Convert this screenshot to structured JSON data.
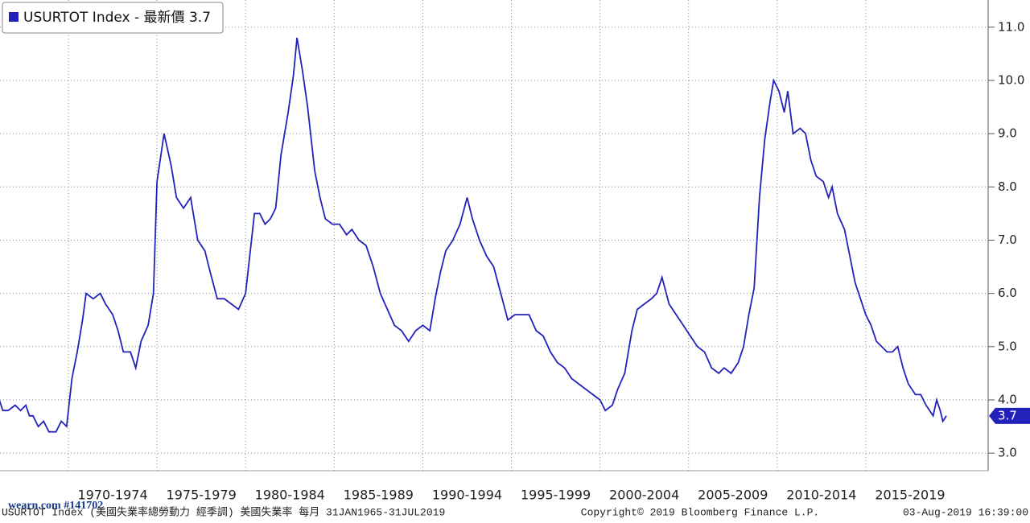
{
  "chart_data": {
    "type": "line",
    "legend_text": "USURTOT Index - 最新價 3.7",
    "last_value_label": "3.7",
    "watermark": "wearn.com #141702",
    "footer_left": "USURTOT Index (美國失業率總勞動力 經季調) 美國失業率  每月 31JAN1965-31JUL2019",
    "footer_center": "Copyright© 2019 Bloomberg Finance L.P.",
    "footer_right": "03-Aug-2019 16:39:00",
    "xlim": [
      1966.14,
      2021.77
    ],
    "xticks": [
      {
        "value": 1970,
        "label": "1970-1974"
      },
      {
        "value": 1975,
        "label": "1975-1979"
      },
      {
        "value": 1980,
        "label": "1980-1984"
      },
      {
        "value": 1985,
        "label": "1985-1989"
      },
      {
        "value": 1990,
        "label": "1990-1994"
      },
      {
        "value": 1995,
        "label": "1995-1999"
      },
      {
        "value": 2000,
        "label": "2000-2004"
      },
      {
        "value": 2005,
        "label": "2005-2009"
      },
      {
        "value": 2010,
        "label": "2010-2014"
      },
      {
        "value": 2015,
        "label": "2015-2019"
      }
    ],
    "ylim": [
      2.67,
      11.51
    ],
    "yticks": [
      {
        "value": 3,
        "label": "3.0"
      },
      {
        "value": 4,
        "label": "4.0"
      },
      {
        "value": 5,
        "label": "5.0"
      },
      {
        "value": 6,
        "label": "6.0"
      },
      {
        "value": 7,
        "label": "7.0"
      },
      {
        "value": 8,
        "label": "8.0"
      },
      {
        "value": 9,
        "label": "9.0"
      },
      {
        "value": 10,
        "label": "10.0"
      },
      {
        "value": 11,
        "label": "11.0"
      }
    ],
    "grid": true,
    "series": [
      {
        "name": "USURTOT Index",
        "color": "#2222b8",
        "x": [
          1966.1,
          1966.3,
          1966.6,
          1967.0,
          1967.3,
          1967.6,
          1967.8,
          1968.0,
          1968.3,
          1968.6,
          1968.9,
          1969.3,
          1969.6,
          1969.9,
          1970.2,
          1970.5,
          1970.8,
          1971.0,
          1971.4,
          1971.8,
          1972.1,
          1972.5,
          1972.8,
          1973.1,
          1973.5,
          1973.8,
          1974.1,
          1974.5,
          1974.8,
          1975.0,
          1975.4,
          1975.8,
          1976.1,
          1976.5,
          1976.9,
          1977.3,
          1977.7,
          1978.0,
          1978.4,
          1978.8,
          1979.2,
          1979.6,
          1980.0,
          1980.3,
          1980.5,
          1980.8,
          1981.1,
          1981.4,
          1981.7,
          1982.0,
          1982.4,
          1982.7,
          1982.9,
          1983.2,
          1983.5,
          1983.9,
          1984.2,
          1984.5,
          1984.9,
          1985.3,
          1985.7,
          1986.0,
          1986.4,
          1986.8,
          1987.2,
          1987.6,
          1988.0,
          1988.4,
          1988.8,
          1989.2,
          1989.6,
          1990.0,
          1990.4,
          1990.7,
          1991.0,
          1991.3,
          1991.7,
          1992.1,
          1992.5,
          1992.8,
          1993.2,
          1993.6,
          1994.0,
          1994.4,
          1994.8,
          1995.2,
          1995.6,
          1996.0,
          1996.4,
          1996.8,
          1997.2,
          1997.6,
          1998.0,
          1998.4,
          1998.8,
          1999.2,
          1999.6,
          2000.0,
          2000.3,
          2000.7,
          2001.0,
          2001.4,
          2001.8,
          2002.1,
          2002.5,
          2002.9,
          2003.2,
          2003.5,
          2003.9,
          2004.3,
          2004.7,
          2005.1,
          2005.5,
          2005.9,
          2006.3,
          2006.7,
          2007.0,
          2007.4,
          2007.8,
          2008.1,
          2008.4,
          2008.7,
          2009.0,
          2009.3,
          2009.6,
          2009.8,
          2010.1,
          2010.4,
          2010.6,
          2010.9,
          2011.3,
          2011.6,
          2011.9,
          2012.2,
          2012.6,
          2012.9,
          2013.1,
          2013.4,
          2013.8,
          2014.1,
          2014.4,
          2014.7,
          2015.0,
          2015.3,
          2015.6,
          2015.9,
          2016.2,
          2016.5,
          2016.8,
          2017.1,
          2017.4,
          2017.8,
          2018.1,
          2018.4,
          2018.8,
          2019.0,
          2019.2,
          2019.35,
          2019.55
        ],
        "values": [
          4.0,
          3.8,
          3.8,
          3.9,
          3.8,
          3.9,
          3.7,
          3.7,
          3.5,
          3.6,
          3.4,
          3.4,
          3.6,
          3.5,
          4.4,
          4.9,
          5.5,
          6.0,
          5.9,
          6.0,
          5.8,
          5.6,
          5.3,
          4.9,
          4.9,
          4.6,
          5.1,
          5.4,
          6.0,
          8.1,
          9.0,
          8.4,
          7.8,
          7.6,
          7.8,
          7.0,
          6.8,
          6.4,
          5.9,
          5.9,
          5.8,
          5.7,
          6.0,
          6.9,
          7.5,
          7.5,
          7.3,
          7.4,
          7.6,
          8.6,
          9.4,
          10.1,
          10.8,
          10.2,
          9.5,
          8.3,
          7.8,
          7.4,
          7.3,
          7.3,
          7.1,
          7.2,
          7.0,
          6.9,
          6.5,
          6.0,
          5.7,
          5.4,
          5.3,
          5.1,
          5.3,
          5.4,
          5.3,
          5.9,
          6.4,
          6.8,
          7.0,
          7.3,
          7.8,
          7.4,
          7.0,
          6.7,
          6.5,
          6.0,
          5.5,
          5.6,
          5.6,
          5.6,
          5.3,
          5.2,
          4.9,
          4.7,
          4.6,
          4.4,
          4.3,
          4.2,
          4.1,
          4.0,
          3.8,
          3.9,
          4.2,
          4.5,
          5.3,
          5.7,
          5.8,
          5.9,
          6.0,
          6.3,
          5.8,
          5.6,
          5.4,
          5.2,
          5.0,
          4.9,
          4.6,
          4.5,
          4.6,
          4.5,
          4.7,
          5.0,
          5.6,
          6.1,
          7.8,
          8.9,
          9.6,
          10.0,
          9.8,
          9.4,
          9.8,
          9.0,
          9.1,
          9.0,
          8.5,
          8.2,
          8.1,
          7.8,
          8.0,
          7.5,
          7.2,
          6.7,
          6.2,
          5.9,
          5.6,
          5.4,
          5.1,
          5.0,
          4.9,
          4.9,
          5.0,
          4.6,
          4.3,
          4.1,
          4.1,
          3.9,
          3.7,
          4.0,
          3.8,
          3.6,
          3.7
        ]
      }
    ]
  }
}
